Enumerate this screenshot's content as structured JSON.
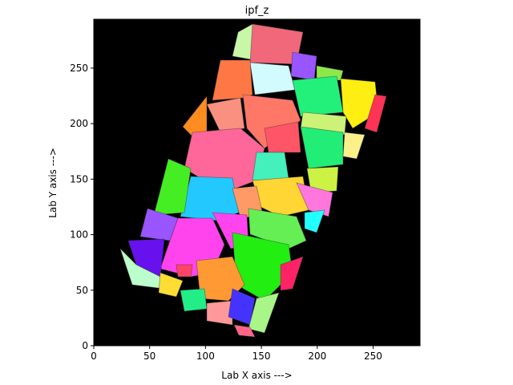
{
  "chart_data": {
    "type": "image",
    "title": "ipf_z",
    "xlabel": "Lab X axis --->",
    "ylabel": "Lab Y axis --->",
    "xlim": [
      0,
      292
    ],
    "ylim": [
      0,
      294
    ],
    "xticks": [
      0,
      50,
      100,
      150,
      200,
      250
    ],
    "yticks": [
      0,
      50,
      100,
      150,
      200,
      250
    ]
  }
}
